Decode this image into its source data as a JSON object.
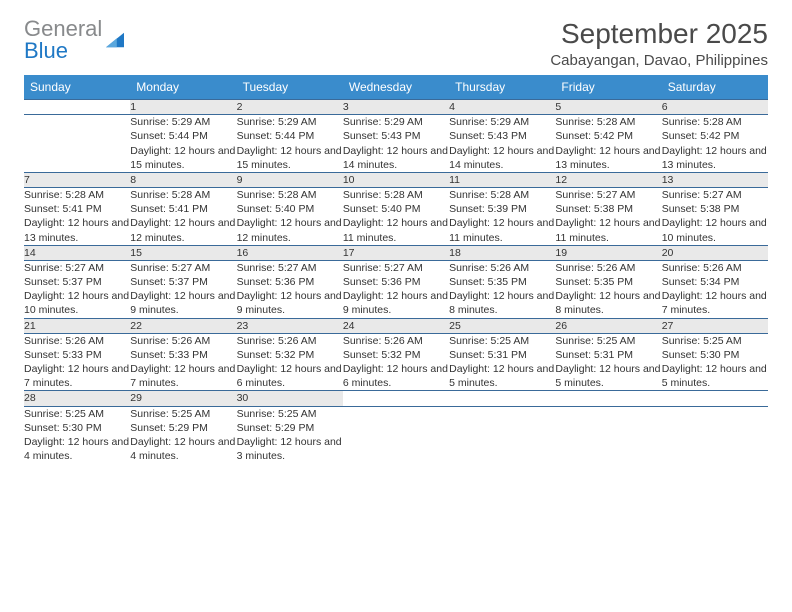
{
  "brand": {
    "part1": "General",
    "part2": "Blue"
  },
  "title": "September 2025",
  "location": "Cabayangan, Davao, Philippines",
  "colors": {
    "header_bg": "#3a8ccc",
    "header_text": "#ffffff",
    "daynum_bg": "#e9e9e9",
    "row_border": "#3a6a99",
    "logo_gray": "#888a8c",
    "logo_blue": "#1f78c5"
  },
  "weekday_labels": [
    "Sunday",
    "Monday",
    "Tuesday",
    "Wednesday",
    "Thursday",
    "Friday",
    "Saturday"
  ],
  "weeks": [
    [
      null,
      {
        "n": "1",
        "sunrise": "Sunrise: 5:29 AM",
        "sunset": "Sunset: 5:44 PM",
        "daylight": "Daylight: 12 hours and 15 minutes."
      },
      {
        "n": "2",
        "sunrise": "Sunrise: 5:29 AM",
        "sunset": "Sunset: 5:44 PM",
        "daylight": "Daylight: 12 hours and 15 minutes."
      },
      {
        "n": "3",
        "sunrise": "Sunrise: 5:29 AM",
        "sunset": "Sunset: 5:43 PM",
        "daylight": "Daylight: 12 hours and 14 minutes."
      },
      {
        "n": "4",
        "sunrise": "Sunrise: 5:29 AM",
        "sunset": "Sunset: 5:43 PM",
        "daylight": "Daylight: 12 hours and 14 minutes."
      },
      {
        "n": "5",
        "sunrise": "Sunrise: 5:28 AM",
        "sunset": "Sunset: 5:42 PM",
        "daylight": "Daylight: 12 hours and 13 minutes."
      },
      {
        "n": "6",
        "sunrise": "Sunrise: 5:28 AM",
        "sunset": "Sunset: 5:42 PM",
        "daylight": "Daylight: 12 hours and 13 minutes."
      }
    ],
    [
      {
        "n": "7",
        "sunrise": "Sunrise: 5:28 AM",
        "sunset": "Sunset: 5:41 PM",
        "daylight": "Daylight: 12 hours and 13 minutes."
      },
      {
        "n": "8",
        "sunrise": "Sunrise: 5:28 AM",
        "sunset": "Sunset: 5:41 PM",
        "daylight": "Daylight: 12 hours and 12 minutes."
      },
      {
        "n": "9",
        "sunrise": "Sunrise: 5:28 AM",
        "sunset": "Sunset: 5:40 PM",
        "daylight": "Daylight: 12 hours and 12 minutes."
      },
      {
        "n": "10",
        "sunrise": "Sunrise: 5:28 AM",
        "sunset": "Sunset: 5:40 PM",
        "daylight": "Daylight: 12 hours and 11 minutes."
      },
      {
        "n": "11",
        "sunrise": "Sunrise: 5:28 AM",
        "sunset": "Sunset: 5:39 PM",
        "daylight": "Daylight: 12 hours and 11 minutes."
      },
      {
        "n": "12",
        "sunrise": "Sunrise: 5:27 AM",
        "sunset": "Sunset: 5:38 PM",
        "daylight": "Daylight: 12 hours and 11 minutes."
      },
      {
        "n": "13",
        "sunrise": "Sunrise: 5:27 AM",
        "sunset": "Sunset: 5:38 PM",
        "daylight": "Daylight: 12 hours and 10 minutes."
      }
    ],
    [
      {
        "n": "14",
        "sunrise": "Sunrise: 5:27 AM",
        "sunset": "Sunset: 5:37 PM",
        "daylight": "Daylight: 12 hours and 10 minutes."
      },
      {
        "n": "15",
        "sunrise": "Sunrise: 5:27 AM",
        "sunset": "Sunset: 5:37 PM",
        "daylight": "Daylight: 12 hours and 9 minutes."
      },
      {
        "n": "16",
        "sunrise": "Sunrise: 5:27 AM",
        "sunset": "Sunset: 5:36 PM",
        "daylight": "Daylight: 12 hours and 9 minutes."
      },
      {
        "n": "17",
        "sunrise": "Sunrise: 5:27 AM",
        "sunset": "Sunset: 5:36 PM",
        "daylight": "Daylight: 12 hours and 9 minutes."
      },
      {
        "n": "18",
        "sunrise": "Sunrise: 5:26 AM",
        "sunset": "Sunset: 5:35 PM",
        "daylight": "Daylight: 12 hours and 8 minutes."
      },
      {
        "n": "19",
        "sunrise": "Sunrise: 5:26 AM",
        "sunset": "Sunset: 5:35 PM",
        "daylight": "Daylight: 12 hours and 8 minutes."
      },
      {
        "n": "20",
        "sunrise": "Sunrise: 5:26 AM",
        "sunset": "Sunset: 5:34 PM",
        "daylight": "Daylight: 12 hours and 7 minutes."
      }
    ],
    [
      {
        "n": "21",
        "sunrise": "Sunrise: 5:26 AM",
        "sunset": "Sunset: 5:33 PM",
        "daylight": "Daylight: 12 hours and 7 minutes."
      },
      {
        "n": "22",
        "sunrise": "Sunrise: 5:26 AM",
        "sunset": "Sunset: 5:33 PM",
        "daylight": "Daylight: 12 hours and 7 minutes."
      },
      {
        "n": "23",
        "sunrise": "Sunrise: 5:26 AM",
        "sunset": "Sunset: 5:32 PM",
        "daylight": "Daylight: 12 hours and 6 minutes."
      },
      {
        "n": "24",
        "sunrise": "Sunrise: 5:26 AM",
        "sunset": "Sunset: 5:32 PM",
        "daylight": "Daylight: 12 hours and 6 minutes."
      },
      {
        "n": "25",
        "sunrise": "Sunrise: 5:25 AM",
        "sunset": "Sunset: 5:31 PM",
        "daylight": "Daylight: 12 hours and 5 minutes."
      },
      {
        "n": "26",
        "sunrise": "Sunrise: 5:25 AM",
        "sunset": "Sunset: 5:31 PM",
        "daylight": "Daylight: 12 hours and 5 minutes."
      },
      {
        "n": "27",
        "sunrise": "Sunrise: 5:25 AM",
        "sunset": "Sunset: 5:30 PM",
        "daylight": "Daylight: 12 hours and 5 minutes."
      }
    ],
    [
      {
        "n": "28",
        "sunrise": "Sunrise: 5:25 AM",
        "sunset": "Sunset: 5:30 PM",
        "daylight": "Daylight: 12 hours and 4 minutes."
      },
      {
        "n": "29",
        "sunrise": "Sunrise: 5:25 AM",
        "sunset": "Sunset: 5:29 PM",
        "daylight": "Daylight: 12 hours and 4 minutes."
      },
      {
        "n": "30",
        "sunrise": "Sunrise: 5:25 AM",
        "sunset": "Sunset: 5:29 PM",
        "daylight": "Daylight: 12 hours and 3 minutes."
      },
      null,
      null,
      null,
      null
    ]
  ]
}
